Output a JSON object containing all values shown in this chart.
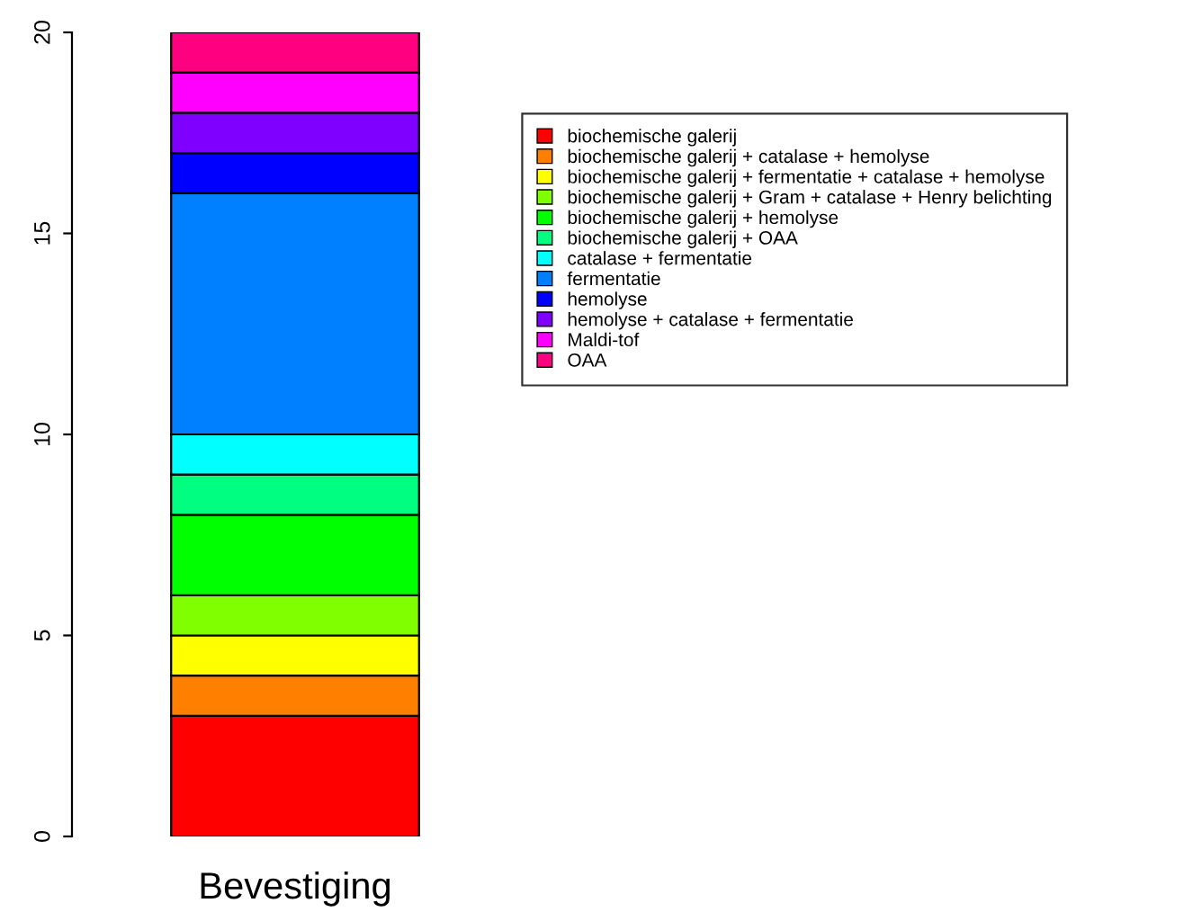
{
  "chart_data": {
    "type": "bar",
    "stacked": true,
    "categories": [
      "Bevestiging"
    ],
    "series": [
      {
        "name": "biochemische galerij",
        "color": "#ff0000",
        "values": [
          3
        ]
      },
      {
        "name": "biochemische galerij + catalase + hemolyse",
        "color": "#ff8000",
        "values": [
          1
        ]
      },
      {
        "name": "biochemische galerij + fermentatie + catalase + hemolyse",
        "color": "#ffff00",
        "values": [
          1
        ]
      },
      {
        "name": "biochemische galerij + Gram + catalase + Henry belichting",
        "color": "#80ff00",
        "values": [
          1
        ]
      },
      {
        "name": "biochemische galerij + hemolyse",
        "color": "#00ff00",
        "values": [
          2
        ]
      },
      {
        "name": "biochemische galerij + OAA",
        "color": "#00ff80",
        "values": [
          1
        ]
      },
      {
        "name": "catalase + fermentatie",
        "color": "#00ffff",
        "values": [
          1
        ]
      },
      {
        "name": "fermentatie",
        "color": "#0080ff",
        "values": [
          6
        ]
      },
      {
        "name": "hemolyse",
        "color": "#0000ff",
        "values": [
          1
        ]
      },
      {
        "name": "hemolyse + catalase + fermentatie",
        "color": "#8000ff",
        "values": [
          1
        ]
      },
      {
        "name": "Maldi-tof",
        "color": "#ff00ff",
        "values": [
          1
        ]
      },
      {
        "name": "OAA",
        "color": "#ff0080",
        "values": [
          1
        ]
      }
    ],
    "ylim": [
      0,
      20
    ],
    "yticks": [
      0,
      5,
      10,
      15,
      20
    ],
    "grid": false,
    "legend": "top right"
  }
}
